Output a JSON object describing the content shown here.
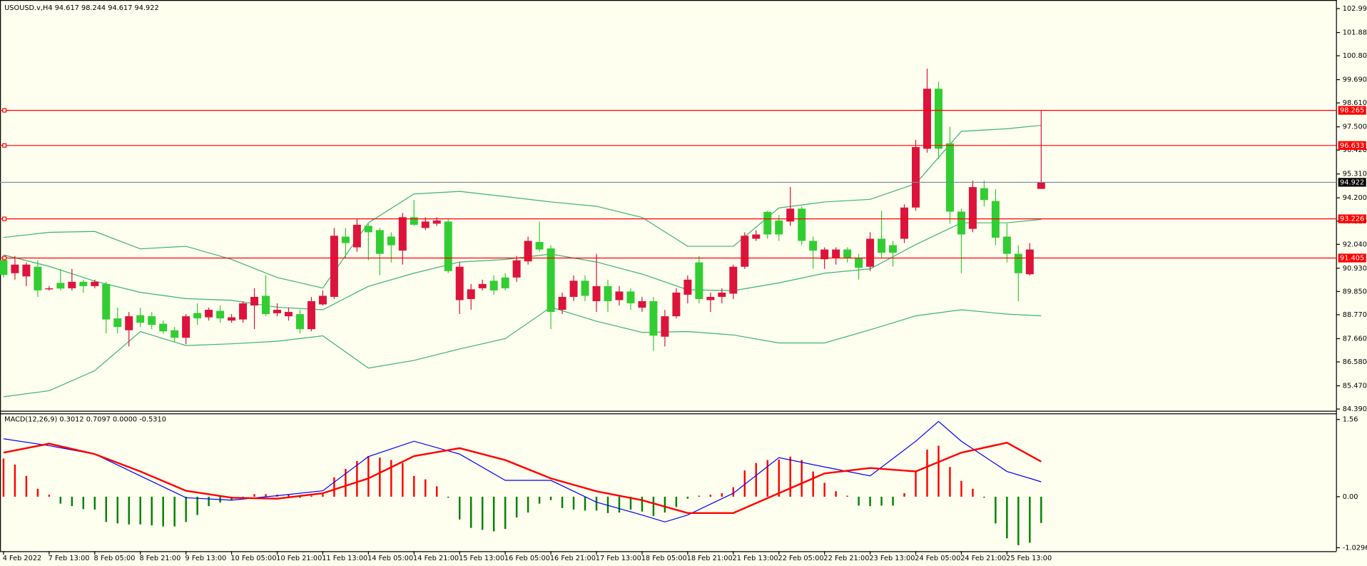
{
  "chart_data": [
    {
      "type": "candlestick",
      "title": "USOUSD.v,H4 94.617 98.244 94.617 94.922",
      "categories": [
        "4 Feb 2022",
        null,
        null,
        null,
        "7 Feb 13:00",
        null,
        null,
        null,
        "8 Feb 05:00",
        null,
        null,
        null,
        "8 Feb 21:00",
        null,
        null,
        null,
        "9 Feb 13:00",
        null,
        null,
        null,
        "10 Feb 05:00",
        null,
        null,
        null,
        "10 Feb 21:00",
        null,
        null,
        null,
        "11 Feb 13:00",
        null,
        null,
        null,
        "14 Feb 05:00",
        null,
        null,
        null,
        "14 Feb 21:00",
        null,
        null,
        null,
        "15 Feb 13:00",
        null,
        null,
        null,
        "16 Feb 05:00",
        null,
        null,
        null,
        "16 Feb 21:00",
        null,
        null,
        null,
        "17 Feb 13:00",
        null,
        null,
        null,
        "18 Feb 05:00",
        null,
        null,
        null,
        "18 Feb 21:00",
        null,
        null,
        null,
        "21 Feb 13:00",
        null,
        null,
        null,
        "22 Feb 05:00",
        null,
        null,
        null,
        "22 Feb 21:00",
        null,
        null,
        null,
        "23 Feb 13:00",
        null,
        null,
        null,
        "24 Feb 05:00",
        null,
        null,
        null,
        "24 Feb 21:00",
        null,
        null,
        null,
        "25 Feb 13:00",
        null,
        null,
        null
      ],
      "open": [
        91.3,
        90.7,
        90.55,
        91.0,
        89.95,
        90.25,
        90.0,
        90.3,
        90.1,
        90.2,
        88.6,
        88.05,
        88.75,
        88.7,
        88.35,
        88.05,
        87.7,
        88.85,
        88.65,
        88.95,
        88.5,
        88.55,
        89.2,
        89.65,
        88.84,
        88.7,
        88.8,
        88.1,
        89.25,
        89.6,
        92.4,
        91.9,
        92.9,
        92.7,
        92.4,
        91.75,
        93.3,
        92.8,
        93.0,
        93.1,
        89.45,
        89.5,
        90.0,
        90.35,
        90.5,
        90.5,
        91.25,
        92.15,
        91.85,
        89.0,
        89.6,
        90.35,
        89.4,
        90.1,
        89.45,
        89.85,
        89.1,
        89.4,
        87.75,
        88.7,
        89.7,
        91.2,
        89.45,
        89.6,
        89.75,
        91.0,
        92.3,
        93.55,
        93.15,
        93.1,
        93.7,
        92.2,
        91.35,
        91.4,
        91.8,
        91.4,
        91.0,
        92.3,
        92.0,
        92.3,
        93.75,
        96.48,
        99.27,
        96.73,
        93.56,
        92.76,
        94.65,
        94.05,
        92.4,
        91.6,
        90.65,
        94.617
      ],
      "high": [
        91.45,
        91.5,
        91.2,
        91.3,
        90.1,
        90.9,
        90.9,
        90.4,
        90.4,
        90.3,
        89.1,
        88.9,
        89.1,
        88.9,
        88.5,
        88.2,
        88.8,
        89.3,
        89.1,
        89.2,
        88.8,
        89.4,
        90.0,
        90.6,
        89.3,
        89.1,
        89.0,
        89.6,
        89.9,
        92.8,
        92.8,
        93.2,
        93.0,
        92.8,
        92.6,
        93.5,
        94.1,
        93.3,
        93.3,
        93.2,
        91.2,
        90.2,
        90.4,
        90.6,
        90.7,
        91.5,
        92.4,
        93.1,
        92.0,
        89.8,
        90.6,
        90.6,
        91.6,
        90.4,
        90.1,
        90.0,
        89.6,
        89.6,
        89.0,
        90.0,
        90.6,
        91.5,
        89.8,
        90.0,
        91.1,
        92.6,
        92.7,
        93.6,
        93.4,
        94.7,
        93.8,
        92.4,
        91.9,
        91.9,
        91.9,
        91.6,
        92.6,
        93.6,
        92.2,
        93.9,
        96.9,
        100.2,
        99.6,
        97.5,
        93.7,
        95.0,
        95.0,
        94.6,
        93.0,
        92.0,
        92.1,
        98.244
      ],
      "low": [
        90.5,
        90.4,
        90.1,
        89.6,
        89.9,
        89.9,
        89.9,
        89.8,
        90.0,
        87.9,
        87.9,
        87.3,
        88.2,
        88.1,
        87.9,
        87.5,
        87.4,
        88.3,
        88.5,
        88.4,
        88.4,
        88.4,
        88.1,
        88.7,
        88.7,
        88.5,
        87.9,
        88.0,
        89.2,
        89.5,
        91.4,
        91.7,
        91.3,
        90.6,
        91.2,
        91.1,
        92.9,
        92.7,
        92.9,
        90.7,
        88.8,
        89.0,
        89.9,
        89.7,
        89.9,
        90.3,
        91.1,
        91.7,
        88.1,
        88.8,
        89.4,
        89.4,
        88.9,
        88.9,
        89.2,
        89.0,
        88.9,
        87.1,
        87.3,
        88.6,
        89.3,
        89.3,
        88.9,
        89.3,
        89.5,
        90.9,
        92.2,
        92.3,
        92.2,
        92.9,
        92.0,
        90.9,
        90.9,
        91.1,
        91.2,
        90.4,
        90.8,
        91.4,
        91.0,
        92.1,
        93.6,
        96.3,
        96.0,
        93.0,
        90.7,
        92.6,
        93.8,
        92.0,
        91.2,
        89.4,
        90.6,
        94.617
      ],
      "close": [
        90.62,
        91.1,
        91.1,
        89.9,
        90.0,
        89.99,
        90.3,
        90.1,
        90.3,
        88.55,
        88.2,
        88.7,
        88.4,
        88.3,
        88.0,
        87.7,
        88.7,
        88.6,
        89.0,
        88.6,
        88.65,
        89.3,
        89.6,
        88.8,
        89.0,
        88.9,
        88.1,
        89.4,
        89.65,
        92.44,
        92.1,
        92.95,
        92.6,
        91.6,
        92.0,
        93.3,
        92.95,
        93.1,
        93.15,
        90.8,
        91.0,
        89.95,
        90.2,
        89.9,
        90.0,
        91.3,
        92.2,
        91.8,
        88.9,
        89.6,
        90.35,
        89.65,
        90.1,
        89.4,
        89.85,
        89.3,
        89.4,
        87.8,
        88.7,
        89.8,
        90.4,
        89.5,
        89.6,
        89.8,
        91.0,
        92.44,
        92.5,
        92.5,
        92.5,
        93.7,
        92.2,
        91.75,
        91.8,
        91.8,
        91.4,
        90.95,
        92.3,
        91.65,
        91.65,
        93.75,
        96.56,
        99.27,
        96.48,
        93.56,
        92.5,
        94.7,
        94.1,
        92.35,
        91.6,
        90.7,
        91.8,
        94.922
      ],
      "up_color": "#dc143c",
      "down_color": "#32cd32",
      "bands": [
        {
          "color": "#3cb371",
          "x": [
            0,
            4,
            8,
            12,
            16,
            20,
            24,
            28,
            32,
            36,
            40,
            44,
            48,
            52,
            56,
            60,
            64,
            68,
            72,
            76,
            80,
            84,
            88,
            91
          ],
          "values": [
            92.36,
            92.6,
            92.64,
            91.83,
            91.95,
            91.34,
            90.5,
            90.01,
            93.04,
            94.38,
            94.5,
            94.26,
            94.01,
            93.81,
            93.29,
            91.95,
            91.95,
            93.73,
            94.01,
            94.13,
            94.86,
            97.29,
            97.41,
            97.57
          ]
        },
        {
          "color": "#3cb371",
          "x": [
            0,
            4,
            8,
            12,
            16,
            20,
            24,
            28,
            32,
            36,
            40,
            44,
            48,
            52,
            56,
            60,
            64,
            68,
            72,
            76,
            80,
            84,
            88,
            91
          ],
          "values": [
            91.55,
            91.02,
            90.33,
            89.81,
            89.52,
            89.44,
            89.12,
            89.0,
            90.09,
            90.7,
            91.22,
            91.34,
            91.59,
            91.22,
            90.66,
            89.93,
            89.89,
            90.25,
            90.7,
            90.9,
            92.03,
            93.04,
            93.04,
            93.2
          ]
        },
        {
          "color": "#3cb371",
          "x": [
            0,
            4,
            8,
            12,
            16,
            20,
            24,
            28,
            32,
            36,
            40,
            44,
            48,
            52,
            56,
            60,
            64,
            68,
            72,
            76,
            80,
            84,
            88,
            91
          ],
          "values": [
            84.96,
            85.24,
            86.17,
            87.99,
            87.34,
            87.42,
            87.54,
            87.79,
            86.29,
            86.65,
            87.18,
            87.66,
            89.12,
            88.47,
            87.95,
            87.99,
            87.83,
            87.46,
            87.46,
            88.07,
            88.72,
            89.0,
            88.8,
            88.72
          ]
        }
      ],
      "levels": [
        98.265,
        96.633,
        93.226,
        91.405
      ],
      "level_color": "#ff0000",
      "bid": 94.922,
      "bid_color": "#778899",
      "ylim": [
        84.31,
        103.35
      ],
      "yticks": [
        {
          "value": 102.99,
          "label": "102.990"
        },
        {
          "value": 101.88,
          "label": "101.880"
        },
        {
          "value": 100.8,
          "label": "100.800"
        },
        {
          "value": 99.69,
          "label": "99.690"
        },
        {
          "value": 98.61,
          "label": "98.610"
        },
        {
          "value": 97.5,
          "label": "97.500"
        },
        {
          "value": 96.42,
          "label": "96.420"
        },
        {
          "value": 95.31,
          "label": "95.310"
        },
        {
          "value": 94.2,
          "label": "94.200"
        },
        {
          "value": 93.12,
          "label": "93.120"
        },
        {
          "value": 92.04,
          "label": "92.040"
        },
        {
          "value": 90.93,
          "label": "90.930"
        },
        {
          "value": 89.85,
          "label": "89.850"
        },
        {
          "value": 88.77,
          "label": "88.770"
        },
        {
          "value": 87.66,
          "label": "87.660"
        },
        {
          "value": 86.58,
          "label": "86.580"
        },
        {
          "value": 85.47,
          "label": "85.470"
        },
        {
          "value": 84.39,
          "label": "84.390"
        }
      ],
      "grid": false
    },
    {
      "type": "macd",
      "title": "MACD(12,26,9) 0.3012 0.7097 0.0000 -0.5310",
      "histogram": [
        0.77,
        0.65,
        0.42,
        0.16,
        0.04,
        -0.14,
        -0.19,
        -0.25,
        -0.26,
        -0.51,
        -0.54,
        -0.56,
        -0.56,
        -0.58,
        -0.6,
        -0.6,
        -0.51,
        -0.37,
        -0.19,
        -0.12,
        -0.07,
        -0.04,
        0.05,
        0.05,
        0.04,
        0.04,
        -0.02,
        0.02,
        0.05,
        0.39,
        0.56,
        0.72,
        0.82,
        0.79,
        0.74,
        0.68,
        0.42,
        0.35,
        0.21,
        -0.02,
        -0.46,
        -0.63,
        -0.67,
        -0.7,
        -0.65,
        -0.42,
        -0.32,
        -0.14,
        -0.07,
        -0.23,
        -0.26,
        -0.28,
        -0.28,
        -0.33,
        -0.32,
        -0.26,
        -0.3,
        -0.39,
        -0.32,
        -0.21,
        -0.04,
        0.02,
        0.04,
        0.07,
        0.19,
        0.53,
        0.68,
        0.74,
        0.75,
        0.81,
        0.74,
        0.51,
        0.28,
        0.11,
        0.02,
        -0.18,
        -0.19,
        -0.18,
        -0.18,
        0.07,
        0.51,
        0.95,
        1.03,
        0.6,
        0.32,
        0.16,
        -0.02,
        -0.54,
        -0.84,
        -0.98,
        -0.93,
        -0.531
      ],
      "positive_color": "#ff0000",
      "negative_color": "#008000",
      "main": {
        "color": "#0000ff",
        "x": [
          0,
          4,
          8,
          12,
          16,
          20,
          24,
          28,
          32,
          36,
          40,
          44,
          48,
          52,
          56,
          58,
          60,
          64,
          68,
          72,
          76,
          80,
          82,
          84,
          88,
          91
        ],
        "values": [
          1.17,
          1.03,
          0.86,
          0.42,
          -0.02,
          -0.07,
          0.02,
          0.12,
          0.81,
          1.12,
          0.86,
          0.33,
          0.33,
          -0.11,
          -0.37,
          -0.51,
          -0.37,
          0.07,
          0.79,
          0.6,
          0.42,
          1.12,
          1.52,
          1.12,
          0.51,
          0.3012
        ]
      },
      "signal": {
        "color": "#ff0000",
        "x": [
          0,
          4,
          8,
          12,
          16,
          20,
          24,
          28,
          32,
          36,
          40,
          44,
          48,
          52,
          56,
          60,
          64,
          68,
          72,
          76,
          80,
          84,
          88,
          91
        ],
        "values": [
          0.89,
          1.07,
          0.86,
          0.51,
          0.12,
          -0.02,
          -0.04,
          0.07,
          0.37,
          0.82,
          0.98,
          0.74,
          0.37,
          0.11,
          -0.07,
          -0.33,
          -0.33,
          0.07,
          0.47,
          0.58,
          0.51,
          0.89,
          1.09,
          0.7097
        ]
      },
      "ylim": [
        -1.1,
        1.665
      ],
      "yticks": [
        1.56,
        {
          "value": 0,
          "label": "0.00"
        },
        -1.0296
      ]
    }
  ]
}
